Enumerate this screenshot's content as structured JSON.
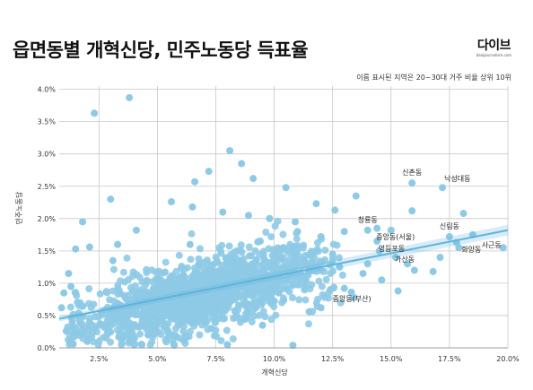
{
  "header": {
    "title": "읍면동별 개혁신당, 민주노동당 득표율",
    "brand": "다이브",
    "brand_sub": "daiojournalism.com",
    "subtitle": "이름 표시된 지역은 20~30대 거주 비율 상위 10위"
  },
  "colors": {
    "points": "#8ecae6",
    "trend": "#5fb4dc",
    "grid": "#c8c8c8"
  },
  "chart_data": {
    "type": "scatter",
    "xlabel": "개혁신당",
    "ylabel": "민주노동당",
    "xlim": [
      0.8,
      20.0
    ],
    "ylim": [
      0.0,
      4.05
    ],
    "x_ticks": [
      {
        "value": 2.5,
        "label": "2.5%"
      },
      {
        "value": 5.0,
        "label": "5.0%"
      },
      {
        "value": 7.5,
        "label": "7.5%"
      },
      {
        "value": 10.0,
        "label": "10.0%"
      },
      {
        "value": 12.5,
        "label": "12.5%"
      },
      {
        "value": 15.0,
        "label": "15.0%"
      },
      {
        "value": 17.5,
        "label": "17.5%"
      },
      {
        "value": 20.0,
        "label": "20.0%"
      }
    ],
    "y_ticks": [
      {
        "value": 0.0,
        "label": "0.0%"
      },
      {
        "value": 0.5,
        "label": "0.5%"
      },
      {
        "value": 1.0,
        "label": "1.0%"
      },
      {
        "value": 1.5,
        "label": "1.5%"
      },
      {
        "value": 2.0,
        "label": "2.0%"
      },
      {
        "value": 2.5,
        "label": "2.5%"
      },
      {
        "value": 3.0,
        "label": "3.0%"
      },
      {
        "value": 3.5,
        "label": "3.5%"
      },
      {
        "value": 4.0,
        "label": "4.0%"
      }
    ],
    "grid": true,
    "trend_line": {
      "x": [
        0.8,
        20.0
      ],
      "y": [
        0.45,
        1.82
      ]
    },
    "labeled_points": [
      {
        "name": "신촌동",
        "x": 15.9,
        "y": 2.55
      },
      {
        "name": "낙성대동",
        "x": 17.2,
        "y": 2.48
      },
      {
        "name": "청룡동",
        "x": 14.0,
        "y": 1.82
      },
      {
        "name": "중앙동(서울)",
        "x": 14.4,
        "y": 1.65
      },
      {
        "name": "신림동",
        "x": 17.5,
        "y": 1.72
      },
      {
        "name": "영등포동",
        "x": 14.5,
        "y": 1.5
      },
      {
        "name": "가산동",
        "x": 15.2,
        "y": 1.4
      },
      {
        "name": "화양동",
        "x": 17.9,
        "y": 1.55
      },
      {
        "name": "사근동",
        "x": 19.8,
        "y": 1.55
      },
      {
        "name": "중앙동(부산)",
        "x": 13.4,
        "y": 0.78
      }
    ],
    "points": [
      [
        3.8,
        3.87
      ],
      [
        2.3,
        3.63
      ],
      [
        8.1,
        3.05
      ],
      [
        7.2,
        2.73
      ],
      [
        8.6,
        2.85
      ],
      [
        9.1,
        2.62
      ],
      [
        6.6,
        2.57
      ],
      [
        10.5,
        2.48
      ],
      [
        13.5,
        2.35
      ],
      [
        3.0,
        2.3
      ],
      [
        5.6,
        2.26
      ],
      [
        6.5,
        2.18
      ],
      [
        11.8,
        2.23
      ],
      [
        12.6,
        2.13
      ],
      [
        15.9,
        2.12
      ],
      [
        18.1,
        2.08
      ],
      [
        14.4,
        1.85
      ],
      [
        15.0,
        1.82
      ],
      [
        13.0,
        1.8
      ],
      [
        12.0,
        1.72
      ],
      [
        1.8,
        1.95
      ],
      [
        3.3,
        1.6
      ],
      [
        2.1,
        1.56
      ],
      [
        1.5,
        1.53
      ],
      [
        1.2,
        1.15
      ],
      [
        1.0,
        0.85
      ],
      [
        1.3,
        0.95
      ],
      [
        0.9,
        0.62
      ],
      [
        1.1,
        0.26
      ],
      [
        1.4,
        0.06
      ],
      [
        2.0,
        0.1
      ],
      [
        3.5,
        0.14
      ],
      [
        4.6,
        0.2
      ],
      [
        5.7,
        0.06
      ],
      [
        10.8,
        0.04
      ],
      [
        9.5,
        0.35
      ],
      [
        8.0,
        0.05
      ],
      [
        7.3,
        0.3
      ],
      [
        12.4,
        0.9
      ],
      [
        13.0,
        0.92
      ],
      [
        11.5,
        0.56
      ],
      [
        12.0,
        0.62
      ],
      [
        10.2,
        0.85
      ],
      [
        13.8,
        1.15
      ],
      [
        16.0,
        1.2
      ],
      [
        16.8,
        1.18
      ],
      [
        15.3,
        0.88
      ],
      [
        17.1,
        1.4
      ],
      [
        17.8,
        1.63
      ],
      [
        13.3,
        0.86
      ],
      [
        14.0,
        1.3
      ],
      [
        12.8,
        1.25
      ],
      [
        15.7,
        1.3
      ],
      [
        18.5,
        1.75
      ],
      [
        11.0,
        1.8
      ],
      [
        9.8,
        2.0
      ],
      [
        8.9,
        2.05
      ],
      [
        10.9,
        1.95
      ],
      [
        7.8,
        2.1
      ],
      [
        4.1,
        1.82
      ],
      [
        3.1,
        1.35
      ],
      [
        12.5,
        1.45
      ],
      [
        11.3,
        1.35
      ],
      [
        6.4,
        1.6
      ],
      [
        9.4,
        1.65
      ],
      [
        10.4,
        1.55
      ],
      [
        14.6,
        1.05
      ]
    ]
  }
}
